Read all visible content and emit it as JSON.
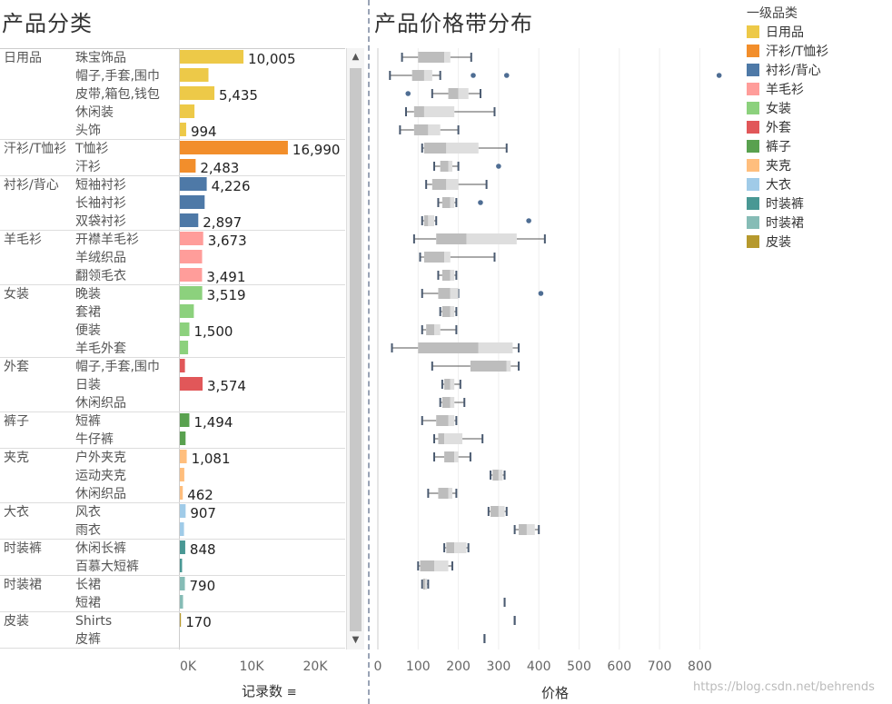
{
  "left_title": "产品分类",
  "right_title": "产品价格带分布",
  "x1_title": "记录数",
  "x2_title": "价格",
  "legend_title": "一级品类",
  "watermark": "https://blog.csdn.net/behrends",
  "scroll_up_icon": "caret-up-icon",
  "scroll_down_icon": "caret-down-icon",
  "sort_icon": "sort-descending-icon",
  "chart_data": [
    {
      "type": "bar",
      "orientation": "horizontal",
      "xlabel": "记录数",
      "xlim": [
        0,
        25000
      ],
      "xticks": [
        0,
        10000,
        20000
      ],
      "xtick_labels": [
        "0K",
        "10K",
        "20K"
      ],
      "groups": [
        {
          "name": "日用品",
          "color": "#EDC948",
          "rows": [
            {
              "label": "珠宝饰品",
              "value": 10005,
              "value_label": "10,005"
            },
            {
              "label": "帽子,手套,围巾",
              "value": 4500,
              "value_label": ""
            },
            {
              "label": "皮带,箱包,钱包",
              "value": 5435,
              "value_label": "5,435"
            },
            {
              "label": "休闲装",
              "value": 2300,
              "value_label": ""
            },
            {
              "label": "头饰",
              "value": 994,
              "value_label": "994"
            }
          ]
        },
        {
          "name": "汗衫/T恤衫",
          "color": "#F28E2B",
          "rows": [
            {
              "label": "T恤衫",
              "value": 16990,
              "value_label": "16,990"
            },
            {
              "label": "汗衫",
              "value": 2483,
              "value_label": "2,483"
            }
          ]
        },
        {
          "name": "衬衫/背心",
          "color": "#4E79A7",
          "rows": [
            {
              "label": "短袖衬衫",
              "value": 4226,
              "value_label": "4,226"
            },
            {
              "label": "长袖衬衫",
              "value": 3900,
              "value_label": ""
            },
            {
              "label": "双袋衬衫",
              "value": 2897,
              "value_label": "2,897"
            }
          ]
        },
        {
          "name": "羊毛衫",
          "color": "#FF9D9A",
          "rows": [
            {
              "label": "开襟羊毛衫",
              "value": 3673,
              "value_label": "3,673"
            },
            {
              "label": "羊绒织品",
              "value": 3500,
              "value_label": ""
            },
            {
              "label": "翻领毛衣",
              "value": 3491,
              "value_label": "3,491"
            }
          ]
        },
        {
          "name": "女装",
          "color": "#8CD17D",
          "rows": [
            {
              "label": "晚装",
              "value": 3519,
              "value_label": "3,519"
            },
            {
              "label": "套裙",
              "value": 2200,
              "value_label": ""
            },
            {
              "label": "便装",
              "value": 1500,
              "value_label": "1,500"
            },
            {
              "label": "羊毛外套",
              "value": 1300,
              "value_label": ""
            }
          ]
        },
        {
          "name": "外套",
          "color": "#E15759",
          "rows": [
            {
              "label": "帽子,手套,围巾",
              "value": 800,
              "value_label": ""
            },
            {
              "label": "日装",
              "value": 3574,
              "value_label": "3,574"
            },
            {
              "label": "休闲织品",
              "value": 0,
              "value_label": ""
            }
          ]
        },
        {
          "name": "裤子",
          "color": "#59A14F",
          "rows": [
            {
              "label": "短裤",
              "value": 1494,
              "value_label": "1,494"
            },
            {
              "label": "牛仔裤",
              "value": 900,
              "value_label": ""
            }
          ]
        },
        {
          "name": "夹克",
          "color": "#FFBE7D",
          "rows": [
            {
              "label": "户外夹克",
              "value": 1081,
              "value_label": "1,081"
            },
            {
              "label": "运动夹克",
              "value": 700,
              "value_label": ""
            },
            {
              "label": "休闲织品",
              "value": 462,
              "value_label": "462"
            }
          ]
        },
        {
          "name": "大衣",
          "color": "#A0CBE8",
          "rows": [
            {
              "label": "风衣",
              "value": 907,
              "value_label": "907"
            },
            {
              "label": "雨衣",
              "value": 650,
              "value_label": ""
            }
          ]
        },
        {
          "name": "时装裤",
          "color": "#499894",
          "rows": [
            {
              "label": "休闲长裤",
              "value": 848,
              "value_label": "848"
            },
            {
              "label": "百慕大短裤",
              "value": 350,
              "value_label": ""
            }
          ]
        },
        {
          "name": "时装裙",
          "color": "#86BCB6",
          "rows": [
            {
              "label": "长裙",
              "value": 790,
              "value_label": "790"
            },
            {
              "label": "短裙",
              "value": 500,
              "value_label": ""
            }
          ]
        },
        {
          "name": "皮装",
          "color": "#B6992D",
          "rows": [
            {
              "label": "Shirts",
              "value": 170,
              "value_label": "170"
            },
            {
              "label": "皮裤",
              "value": 0,
              "value_label": ""
            }
          ]
        }
      ]
    },
    {
      "type": "box",
      "orientation": "horizontal",
      "xlabel": "价格",
      "xlim": [
        -10,
        880
      ],
      "xticks": [
        0,
        100,
        200,
        300,
        400,
        500,
        600,
        700,
        800
      ],
      "xtick_labels": [
        "0",
        "100",
        "200",
        "300",
        "400",
        "500",
        "600",
        "700",
        "800"
      ],
      "boxes": [
        {
          "min": 60,
          "q1": 100,
          "median": 165,
          "q3": 180,
          "max": 232,
          "outliers": []
        },
        {
          "min": 30,
          "q1": 85,
          "median": 115,
          "q3": 135,
          "max": 155,
          "outliers": [
            237,
            320,
            848
          ]
        },
        {
          "min": 135,
          "q1": 175,
          "median": 200,
          "q3": 225,
          "max": 255,
          "outliers": [
            75
          ]
        },
        {
          "min": 70,
          "q1": 90,
          "median": 115,
          "q3": 190,
          "max": 290,
          "outliers": []
        },
        {
          "min": 55,
          "q1": 90,
          "median": 125,
          "q3": 155,
          "max": 200,
          "outliers": []
        },
        {
          "min": 110,
          "q1": 115,
          "median": 170,
          "q3": 250,
          "max": 320,
          "outliers": []
        },
        {
          "min": 140,
          "q1": 155,
          "median": 175,
          "q3": 185,
          "max": 200,
          "outliers": [
            300
          ]
        },
        {
          "min": 120,
          "q1": 135,
          "median": 170,
          "q3": 200,
          "max": 270,
          "outliers": []
        },
        {
          "min": 150,
          "q1": 160,
          "median": 180,
          "q3": 190,
          "max": 195,
          "outliers": [
            255
          ]
        },
        {
          "min": 110,
          "q1": 115,
          "median": 125,
          "q3": 140,
          "max": 145,
          "outliers": [
            375
          ]
        },
        {
          "min": 90,
          "q1": 145,
          "median": 220,
          "q3": 345,
          "max": 415,
          "outliers": []
        },
        {
          "min": 105,
          "q1": 115,
          "median": 165,
          "q3": 180,
          "max": 290,
          "outliers": []
        },
        {
          "min": 150,
          "q1": 160,
          "median": 180,
          "q3": 190,
          "max": 195,
          "outliers": []
        },
        {
          "min": 110,
          "q1": 150,
          "median": 180,
          "q3": 200,
          "max": 200,
          "outliers": [
            405
          ]
        },
        {
          "min": 155,
          "q1": 160,
          "median": 180,
          "q3": 190,
          "max": 195,
          "outliers": []
        },
        {
          "min": 110,
          "q1": 120,
          "median": 140,
          "q3": 155,
          "max": 195,
          "outliers": []
        },
        {
          "min": 35,
          "q1": 100,
          "median": 250,
          "q3": 335,
          "max": 350,
          "outliers": []
        },
        {
          "min": 135,
          "q1": 230,
          "median": 320,
          "q3": 330,
          "max": 350,
          "outliers": []
        },
        {
          "min": 160,
          "q1": 165,
          "median": 180,
          "q3": 190,
          "max": 205,
          "outliers": []
        },
        {
          "min": 155,
          "q1": 160,
          "median": 180,
          "q3": 190,
          "max": 215,
          "outliers": []
        },
        {
          "min": 110,
          "q1": 145,
          "median": 175,
          "q3": 190,
          "max": 195,
          "outliers": []
        },
        {
          "min": 140,
          "q1": 150,
          "median": 165,
          "q3": 210,
          "max": 260,
          "outliers": []
        },
        {
          "min": 140,
          "q1": 165,
          "median": 190,
          "q3": 200,
          "max": 230,
          "outliers": []
        },
        {
          "min": 280,
          "q1": 285,
          "median": 300,
          "q3": 310,
          "max": 315,
          "outliers": []
        },
        {
          "min": 125,
          "q1": 150,
          "median": 175,
          "q3": 185,
          "max": 195,
          "outliers": []
        },
        {
          "min": 275,
          "q1": 280,
          "median": 300,
          "q3": 315,
          "max": 320,
          "outliers": []
        },
        {
          "min": 340,
          "q1": 350,
          "median": 370,
          "q3": 390,
          "max": 400,
          "outliers": []
        },
        {
          "min": 165,
          "q1": 170,
          "median": 190,
          "q3": 220,
          "max": 225,
          "outliers": []
        },
        {
          "min": 100,
          "q1": 105,
          "median": 140,
          "q3": 175,
          "max": 185,
          "outliers": []
        },
        {
          "min": 110,
          "q1": 112,
          "median": 118,
          "q3": 122,
          "max": 125,
          "outliers": []
        },
        {
          "min": 315,
          "q1": 315,
          "median": 315,
          "q3": 315,
          "max": 315,
          "outliers": []
        },
        {
          "min": 340,
          "q1": 340,
          "median": 340,
          "q3": 340,
          "max": 340,
          "outliers": []
        },
        {
          "min": 265,
          "q1": 265,
          "median": 265,
          "q3": 265,
          "max": 265,
          "outliers": []
        }
      ]
    }
  ]
}
